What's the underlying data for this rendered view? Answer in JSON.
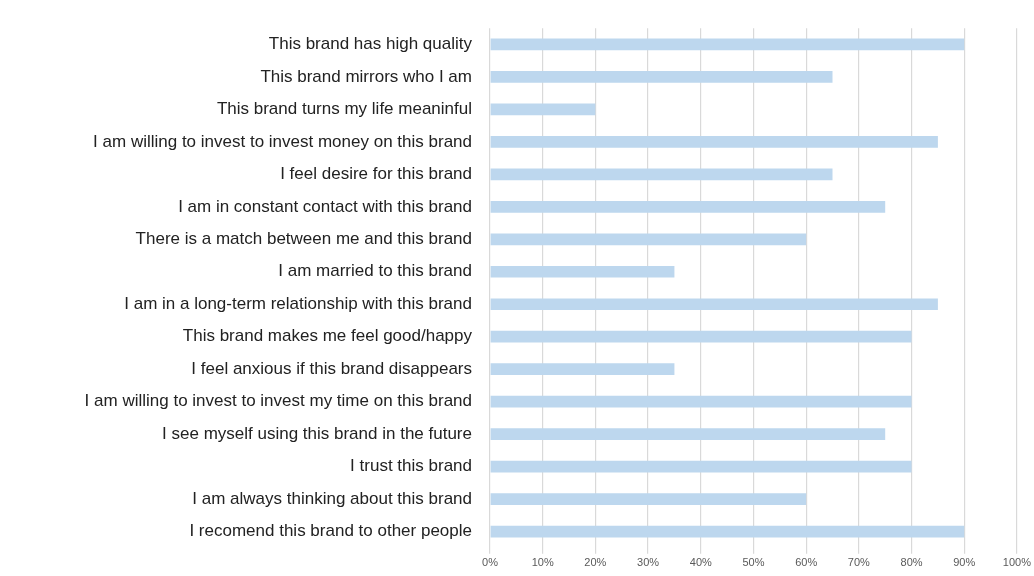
{
  "chart_data": {
    "type": "bar",
    "orientation": "horizontal",
    "categories": [
      "This brand has high quality",
      "This brand mirrors who I am",
      "This brand turns my life meaninful",
      "I am willing to invest to invest money on this brand",
      "I feel desire for this brand",
      "I am in constant contact with this brand",
      "There is a match between me and this brand",
      "I am married to this brand",
      "I am in a long-term relationship with this brand",
      "This brand makes me feel good/happy",
      "I feel anxious if this brand disappears",
      "I am willing to invest to invest my time on this brand",
      "I see myself using this brand in the future",
      "I trust this brand",
      "I am always thinking about this brand",
      "I recomend this brand to other people"
    ],
    "values": [
      90,
      65,
      20,
      85,
      65,
      75,
      60,
      35,
      85,
      80,
      35,
      80,
      75,
      80,
      60,
      90
    ],
    "color": "#bdd7ee",
    "xlim": [
      0,
      100
    ],
    "xticks": [
      {
        "value": 0,
        "label": "0%"
      },
      {
        "value": 10,
        "label": "10%"
      },
      {
        "value": 20,
        "label": "20%"
      },
      {
        "value": 30,
        "label": "30%"
      },
      {
        "value": 40,
        "label": "40%"
      },
      {
        "value": 50,
        "label": "50%"
      },
      {
        "value": 60,
        "label": "60%"
      },
      {
        "value": 70,
        "label": "70%"
      },
      {
        "value": 80,
        "label": "80%"
      },
      {
        "value": 90,
        "label": "90%"
      },
      {
        "value": 100,
        "label": "100%"
      }
    ],
    "grid": "x"
  }
}
